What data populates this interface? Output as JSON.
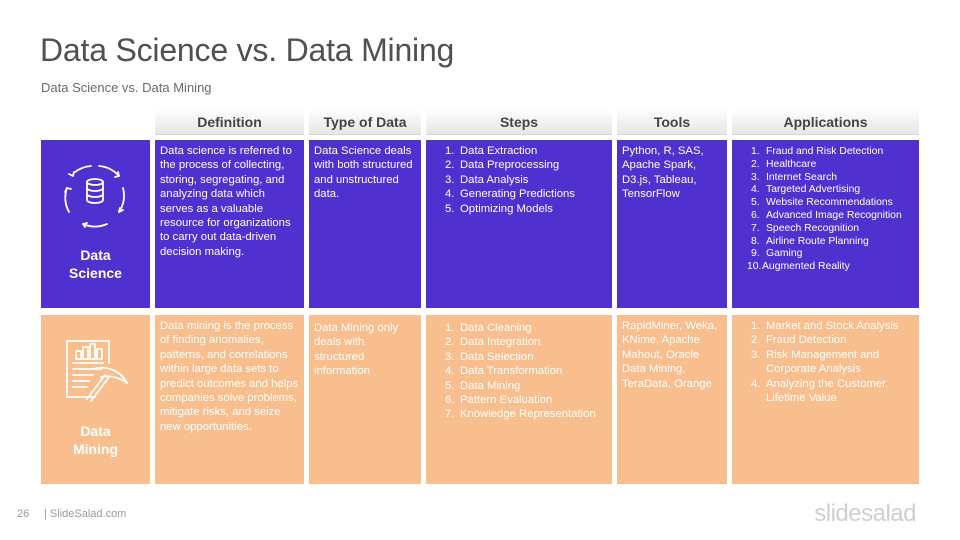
{
  "title": "Data Science vs. Data Mining",
  "subtitle": "Data Science  vs. Data Mining",
  "headers": [
    "Definition",
    "Type of Data",
    "Steps",
    "Tools",
    "Applications"
  ],
  "rows": {
    "science": {
      "label_line1": "Data",
      "label_line2": "Science",
      "icon": "database-cycle-icon",
      "definition": "Data science  is referred to the process of collecting, storing, segregating, and analyzing data which serves as a valuable resource for organizations to carry out data-driven decision making.",
      "type_of_data": "Data Science deals with both structured and unstructured data.",
      "steps": [
        "Data Extraction",
        "Data Preprocessing",
        "Data Analysis",
        "Generating Predictions",
        "Optimizing Models"
      ],
      "tools": "Python, R, SAS, Apache Spark, D3.js, Tableau, TensorFlow",
      "applications": [
        "Fraud and Risk Detection",
        "Healthcare",
        "Internet Search",
        "Targeted Advertising",
        "Website Recommendations",
        "Advanced Image Recognition",
        "Speech Recognition",
        "Airline Route Planning",
        "Gaming",
        "Augmented Reality"
      ]
    },
    "mining": {
      "label_line1": "Data",
      "label_line2": "Mining",
      "icon": "report-pickaxe-icon",
      "definition": "Data mining is the process of finding anomalies, patterns, and correlations within large data sets to predict outcomes and helps companies solve problems, mitigate risks, and seize new opportunities.",
      "type_of_data": "Data Mining only deals with structured information",
      "steps": [
        "Data Cleaning",
        "Data Integration",
        "Data Selection",
        "Data Transformation",
        "Data Mining",
        "Pattern Evaluation",
        "Knowledge Representation"
      ],
      "tools": "RapidMiner, Weka, KNime, Apache Mahout, Oracle Data Mining, TeraData, Orange",
      "applications": [
        "Market and Stock Analysis",
        "Fraud Detection",
        "Risk Management and Corporate Analysis",
        "Analyzing the Customer Lifetime  Value"
      ]
    }
  },
  "footer": {
    "page_number": "26",
    "site": "| SlideSalad.com",
    "logo": "slidesalad"
  }
}
